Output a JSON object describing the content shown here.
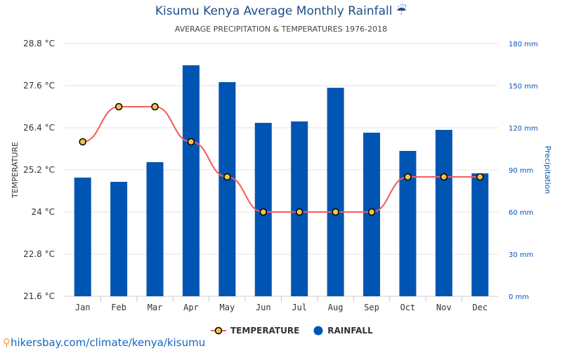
{
  "title": "Kisumu Kenya Average Monthly Rainfall ☔",
  "subtitle": "AVERAGE PRECIPITATION & TEMPERATURES 1976-2018",
  "source": "hikersbay.com/climate/kenya/kisumu",
  "colors": {
    "temperature_line": "#f25c5c",
    "temperature_marker": "#f5c04a",
    "rainfall": "#0055b3"
  },
  "chart_data": {
    "type": "bar+line",
    "categories": [
      "Jan",
      "Feb",
      "Mar",
      "Apr",
      "May",
      "Jun",
      "Jul",
      "Aug",
      "Sep",
      "Oct",
      "Nov",
      "Dec"
    ],
    "series": [
      {
        "name": "TEMPERATURE",
        "type": "line",
        "axis": "left",
        "values": [
          26.0,
          27.0,
          27.0,
          26.0,
          25.0,
          24.0,
          24.0,
          24.0,
          24.0,
          25.0,
          25.0,
          25.0
        ]
      },
      {
        "name": "RAINFALL",
        "type": "bar",
        "axis": "right",
        "values": [
          84.5,
          81.5,
          95.5,
          164.5,
          152.5,
          123.5,
          124.5,
          148.5,
          116.5,
          103.5,
          118.5,
          87.5
        ]
      }
    ],
    "ylabel": "TEMPERATURE",
    "y2label": "Precipitation",
    "ylim": [
      21.6,
      28.8
    ],
    "y2lim": [
      0,
      180
    ],
    "yticks": [
      "21.6 °C",
      "22.8 °C",
      "24 °C",
      "25.2 °C",
      "26.4 °C",
      "27.6 °C",
      "28.8 °C"
    ],
    "y2ticks": [
      "0 mm",
      "30 mm",
      "60 mm",
      "90 mm",
      "120 mm",
      "150 mm",
      "180 mm"
    ],
    "grid": true,
    "legend": "bottom"
  }
}
